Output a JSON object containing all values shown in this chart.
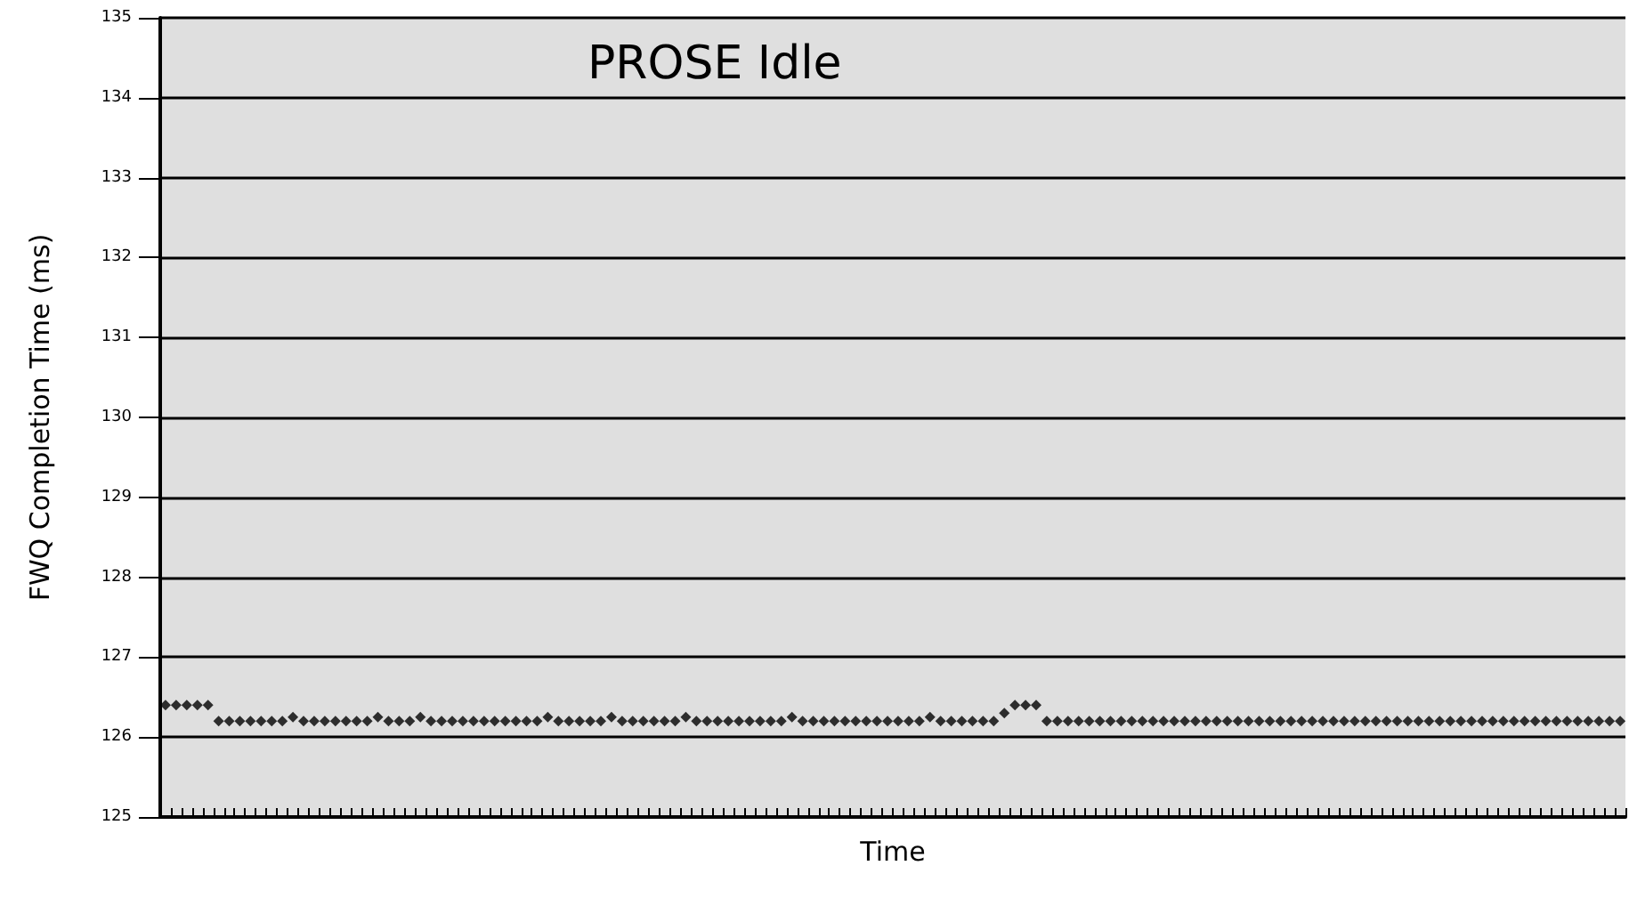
{
  "chart_data": {
    "type": "scatter",
    "title": "PROSE Idle",
    "xlabel": "Time",
    "ylabel": "FWQ Completion Time (ms)",
    "categories": [
      null,
      null,
      null,
      null,
      null,
      null,
      null,
      null,
      null,
      null,
      null,
      null,
      null,
      null,
      null,
      null,
      null,
      null,
      null,
      null,
      null,
      null,
      null,
      null,
      null,
      null,
      null,
      null,
      null,
      null,
      null,
      null,
      null,
      null,
      null,
      null,
      null,
      null,
      null,
      null,
      null,
      null,
      null,
      null,
      null,
      null,
      null,
      null,
      null,
      null,
      null,
      null,
      null,
      null,
      null,
      null,
      null,
      null,
      null,
      null,
      null,
      null,
      null,
      null,
      null,
      null,
      null,
      null,
      null,
      null,
      null,
      null,
      null,
      null,
      null,
      null,
      null,
      null,
      null,
      null,
      null,
      null,
      null,
      null,
      null,
      null,
      null,
      null,
      null,
      null,
      null,
      null,
      null,
      null,
      null,
      null,
      null,
      null,
      null,
      null,
      null,
      null,
      null,
      null,
      null,
      null,
      null,
      null,
      null,
      null,
      null,
      null,
      null,
      null,
      null,
      null,
      null,
      null,
      null,
      null,
      null,
      null,
      null,
      null,
      null,
      null,
      null,
      null,
      null,
      null,
      null,
      null,
      null,
      null,
      null,
      null,
      null,
      null
    ],
    "series": [
      {
        "color": "#000000",
        "values": [
          126.4,
          126.4,
          126.4,
          126.4,
          126.4,
          126.2,
          126.2,
          126.2,
          126.2,
          126.2,
          126.2,
          126.2,
          126.25,
          126.2,
          126.2,
          126.2,
          126.2,
          126.2,
          126.2,
          126.2,
          126.25,
          126.2,
          126.2,
          126.2,
          126.25,
          126.2,
          126.2,
          126.2,
          126.2,
          126.2,
          126.2,
          126.2,
          126.2,
          126.2,
          126.2,
          126.2,
          126.25,
          126.2,
          126.2,
          126.2,
          126.2,
          126.2,
          126.25,
          126.2,
          126.2,
          126.2,
          126.2,
          126.2,
          126.2,
          126.25,
          126.2,
          126.2,
          126.2,
          126.2,
          126.2,
          126.2,
          126.2,
          126.2,
          126.2,
          126.25,
          126.2,
          126.2,
          126.2,
          126.2,
          126.2,
          126.2,
          126.2,
          126.2,
          126.2,
          126.2,
          126.2,
          126.2,
          126.25,
          126.2,
          126.2,
          126.2,
          126.2,
          126.2,
          126.2,
          126.3,
          126.4,
          126.4,
          126.4,
          126.2,
          126.2,
          126.2,
          126.2,
          126.2,
          126.2,
          126.2,
          126.2,
          126.2,
          126.2,
          126.2,
          126.2,
          126.2,
          126.2,
          126.2,
          126.2,
          126.2,
          126.2,
          126.2,
          126.2,
          126.2,
          126.2,
          126.2,
          126.2,
          126.2,
          126.2,
          126.2,
          126.2,
          126.2,
          126.2,
          126.2,
          126.2,
          126.2,
          126.2,
          126.2,
          126.2,
          126.2,
          126.2,
          126.2,
          126.2,
          126.2,
          126.2,
          126.2,
          126.2,
          126.2,
          126.2,
          126.2,
          126.2,
          126.2,
          126.2,
          126.2,
          126.2,
          126.2,
          126.2,
          126.2
        ]
      }
    ],
    "ylim": [
      125,
      135
    ],
    "yticks": [
      125,
      126,
      127,
      128,
      129,
      130,
      131,
      132,
      133,
      134,
      135
    ],
    "grid": "y",
    "marker": "diamond",
    "tick_labels": "y"
  }
}
